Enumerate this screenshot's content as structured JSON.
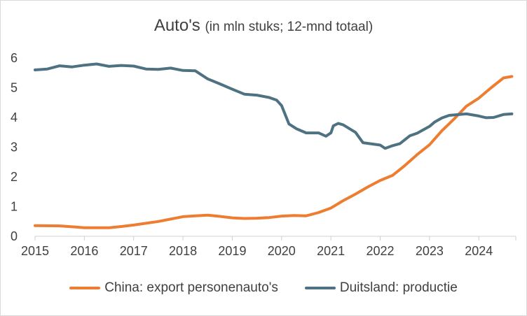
{
  "chart_data": {
    "type": "line",
    "title": "Auto's",
    "subtitle": "(in mln stuks; 12-mnd totaal)",
    "xlabel": "",
    "ylabel": "",
    "xlim": [
      2015.0,
      2024.75
    ],
    "ylim": [
      0,
      6
    ],
    "grid": false,
    "legend_position": "bottom",
    "x_ticks": [
      "2015",
      "2016",
      "2017",
      "2018",
      "2019",
      "2020",
      "2021",
      "2022",
      "2023",
      "2024"
    ],
    "y_ticks": [
      "0",
      "1",
      "2",
      "3",
      "4",
      "5",
      "6"
    ],
    "series": [
      {
        "name": "China: export personenauto's",
        "color": "#ED7D31",
        "points": [
          [
            2015.0,
            0.36
          ],
          [
            2015.5,
            0.35
          ],
          [
            2015.83,
            0.31
          ],
          [
            2016.0,
            0.29
          ],
          [
            2016.5,
            0.29
          ],
          [
            2016.75,
            0.33
          ],
          [
            2017.0,
            0.38
          ],
          [
            2017.5,
            0.5
          ],
          [
            2017.75,
            0.58
          ],
          [
            2018.0,
            0.66
          ],
          [
            2018.25,
            0.69
          ],
          [
            2018.5,
            0.71
          ],
          [
            2018.75,
            0.67
          ],
          [
            2019.0,
            0.62
          ],
          [
            2019.25,
            0.6
          ],
          [
            2019.5,
            0.61
          ],
          [
            2019.75,
            0.63
          ],
          [
            2020.0,
            0.68
          ],
          [
            2020.25,
            0.7
          ],
          [
            2020.5,
            0.69
          ],
          [
            2020.75,
            0.8
          ],
          [
            2021.0,
            0.95
          ],
          [
            2021.25,
            1.2
          ],
          [
            2021.5,
            1.42
          ],
          [
            2021.75,
            1.66
          ],
          [
            2022.0,
            1.88
          ],
          [
            2022.25,
            2.05
          ],
          [
            2022.5,
            2.38
          ],
          [
            2022.75,
            2.75
          ],
          [
            2023.0,
            3.08
          ],
          [
            2023.25,
            3.55
          ],
          [
            2023.5,
            3.95
          ],
          [
            2023.75,
            4.38
          ],
          [
            2024.0,
            4.65
          ],
          [
            2024.25,
            5.0
          ],
          [
            2024.5,
            5.33
          ],
          [
            2024.67,
            5.38
          ]
        ]
      },
      {
        "name": "Duitsland: productie",
        "color": "#4E7281",
        "points": [
          [
            2015.0,
            5.6
          ],
          [
            2015.25,
            5.63
          ],
          [
            2015.5,
            5.74
          ],
          [
            2015.75,
            5.7
          ],
          [
            2016.0,
            5.76
          ],
          [
            2016.25,
            5.8
          ],
          [
            2016.5,
            5.72
          ],
          [
            2016.75,
            5.75
          ],
          [
            2017.0,
            5.73
          ],
          [
            2017.25,
            5.63
          ],
          [
            2017.5,
            5.62
          ],
          [
            2017.75,
            5.66
          ],
          [
            2018.0,
            5.58
          ],
          [
            2018.25,
            5.57
          ],
          [
            2018.5,
            5.3
          ],
          [
            2018.75,
            5.13
          ],
          [
            2019.0,
            4.95
          ],
          [
            2019.25,
            4.78
          ],
          [
            2019.5,
            4.75
          ],
          [
            2019.75,
            4.67
          ],
          [
            2019.9,
            4.58
          ],
          [
            2020.0,
            4.4
          ],
          [
            2020.15,
            3.78
          ],
          [
            2020.3,
            3.62
          ],
          [
            2020.5,
            3.48
          ],
          [
            2020.75,
            3.48
          ],
          [
            2020.9,
            3.37
          ],
          [
            2021.0,
            3.48
          ],
          [
            2021.05,
            3.72
          ],
          [
            2021.15,
            3.8
          ],
          [
            2021.25,
            3.75
          ],
          [
            2021.5,
            3.5
          ],
          [
            2021.65,
            3.15
          ],
          [
            2022.0,
            3.07
          ],
          [
            2022.1,
            2.96
          ],
          [
            2022.25,
            3.05
          ],
          [
            2022.4,
            3.12
          ],
          [
            2022.6,
            3.38
          ],
          [
            2022.75,
            3.47
          ],
          [
            2023.0,
            3.7
          ],
          [
            2023.1,
            3.84
          ],
          [
            2023.25,
            3.98
          ],
          [
            2023.4,
            4.07
          ],
          [
            2023.75,
            4.12
          ],
          [
            2024.0,
            4.05
          ],
          [
            2024.15,
            3.99
          ],
          [
            2024.3,
            4.0
          ],
          [
            2024.5,
            4.1
          ],
          [
            2024.67,
            4.12
          ]
        ]
      }
    ]
  }
}
